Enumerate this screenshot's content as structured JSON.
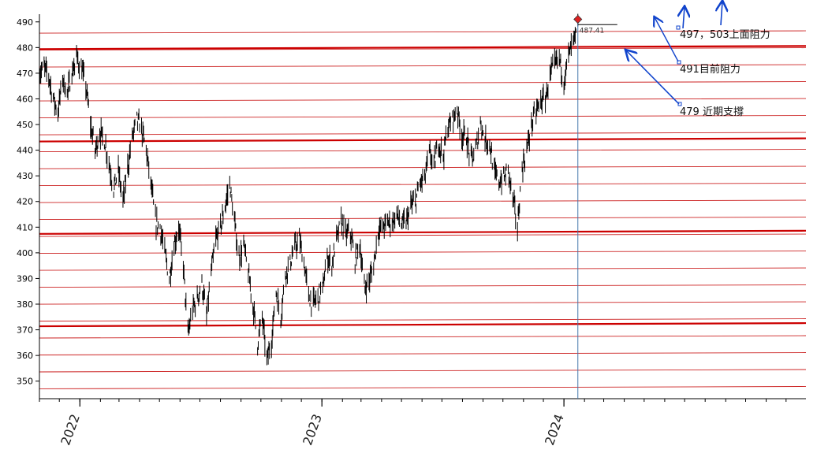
{
  "chart_data": {
    "type": "candlestick",
    "title": "",
    "xlabel": "",
    "ylabel": "",
    "ylim": [
      345,
      493
    ],
    "yticks": [
      350,
      360,
      370,
      380,
      390,
      400,
      410,
      420,
      430,
      440,
      450,
      460,
      470,
      480,
      490
    ],
    "xlim": [
      "2021-11-01",
      "2024-12-31"
    ],
    "xticks": [
      {
        "label": "2022",
        "date": "2022-01-01"
      },
      {
        "label": "2023",
        "date": "2023-01-01"
      },
      {
        "label": "2024",
        "date": "2024-01-01"
      }
    ],
    "grid": false,
    "colors": {
      "bars": "#000000",
      "thin_lines": "#cc2222",
      "thick_lines": "#cc0000",
      "annotation": "#1144cc",
      "marker": "#dd2222",
      "cursor_line": "#4477aa"
    },
    "price_points": [
      [
        "2021-11-01",
        470
      ],
      [
        "2021-11-08",
        472
      ],
      [
        "2021-11-15",
        469
      ],
      [
        "2021-11-22",
        460
      ],
      [
        "2021-11-29",
        455
      ],
      [
        "2021-12-06",
        468
      ],
      [
        "2021-12-13",
        462
      ],
      [
        "2021-12-20",
        470
      ],
      [
        "2021-12-27",
        476
      ],
      [
        "2022-01-03",
        472
      ],
      [
        "2022-01-10",
        465
      ],
      [
        "2022-01-17",
        450
      ],
      [
        "2022-01-24",
        440
      ],
      [
        "2022-01-31",
        447
      ],
      [
        "2022-02-07",
        444
      ],
      [
        "2022-02-14",
        435
      ],
      [
        "2022-02-21",
        425
      ],
      [
        "2022-02-28",
        432
      ],
      [
        "2022-03-07",
        420
      ],
      [
        "2022-03-14",
        433
      ],
      [
        "2022-03-21",
        445
      ],
      [
        "2022-03-28",
        452
      ],
      [
        "2022-04-04",
        448
      ],
      [
        "2022-04-11",
        440
      ],
      [
        "2022-04-18",
        427
      ],
      [
        "2022-04-25",
        412
      ],
      [
        "2022-05-02",
        410
      ],
      [
        "2022-05-09",
        400
      ],
      [
        "2022-05-16",
        390
      ],
      [
        "2022-05-23",
        403
      ],
      [
        "2022-05-30",
        410
      ],
      [
        "2022-06-06",
        395
      ],
      [
        "2022-06-13",
        368
      ],
      [
        "2022-06-20",
        378
      ],
      [
        "2022-06-27",
        382
      ],
      [
        "2022-07-04",
        388
      ],
      [
        "2022-07-11",
        375
      ],
      [
        "2022-07-18",
        392
      ],
      [
        "2022-07-25",
        405
      ],
      [
        "2022-08-01",
        410
      ],
      [
        "2022-08-08",
        418
      ],
      [
        "2022-08-15",
        427
      ],
      [
        "2022-08-22",
        412
      ],
      [
        "2022-08-29",
        398
      ],
      [
        "2022-09-05",
        403
      ],
      [
        "2022-09-12",
        392
      ],
      [
        "2022-09-19",
        380
      ],
      [
        "2022-09-26",
        365
      ],
      [
        "2022-10-03",
        375
      ],
      [
        "2022-10-10",
        358
      ],
      [
        "2022-10-17",
        366
      ],
      [
        "2022-10-24",
        385
      ],
      [
        "2022-10-31",
        375
      ],
      [
        "2022-11-07",
        392
      ],
      [
        "2022-11-14",
        396
      ],
      [
        "2022-11-21",
        402
      ],
      [
        "2022-11-28",
        405
      ],
      [
        "2022-12-05",
        396
      ],
      [
        "2022-12-12",
        383
      ],
      [
        "2022-12-19",
        380
      ],
      [
        "2022-12-26",
        383
      ],
      [
        "2023-01-02",
        386
      ],
      [
        "2023-01-09",
        398
      ],
      [
        "2023-01-16",
        396
      ],
      [
        "2023-01-23",
        405
      ],
      [
        "2023-01-30",
        412
      ],
      [
        "2023-02-06",
        407
      ],
      [
        "2023-02-13",
        408
      ],
      [
        "2023-02-20",
        397
      ],
      [
        "2023-02-27",
        404
      ],
      [
        "2023-03-06",
        386
      ],
      [
        "2023-03-13",
        389
      ],
      [
        "2023-03-20",
        395
      ],
      [
        "2023-03-27",
        409
      ],
      [
        "2023-04-03",
        410
      ],
      [
        "2023-04-10",
        412
      ],
      [
        "2023-04-17",
        412
      ],
      [
        "2023-04-24",
        415
      ],
      [
        "2023-05-01",
        411
      ],
      [
        "2023-05-08",
        412
      ],
      [
        "2023-05-15",
        418
      ],
      [
        "2023-05-22",
        420
      ],
      [
        "2023-05-29",
        427
      ],
      [
        "2023-06-05",
        429
      ],
      [
        "2023-06-12",
        439
      ],
      [
        "2023-06-19",
        434
      ],
      [
        "2023-06-26",
        443
      ],
      [
        "2023-07-03",
        438
      ],
      [
        "2023-07-10",
        449
      ],
      [
        "2023-07-17",
        452
      ],
      [
        "2023-07-24",
        456
      ],
      [
        "2023-07-31",
        446
      ],
      [
        "2023-08-07",
        445
      ],
      [
        "2023-08-14",
        436
      ],
      [
        "2023-08-21",
        440
      ],
      [
        "2023-08-28",
        451
      ],
      [
        "2023-09-04",
        444
      ],
      [
        "2023-09-11",
        443
      ],
      [
        "2023-09-18",
        431
      ],
      [
        "2023-09-25",
        428
      ],
      [
        "2023-10-02",
        429
      ],
      [
        "2023-10-09",
        432
      ],
      [
        "2023-10-16",
        421
      ],
      [
        "2023-10-23",
        410
      ],
      [
        "2023-10-30",
        433
      ],
      [
        "2023-11-06",
        440
      ],
      [
        "2023-11-13",
        450
      ],
      [
        "2023-11-20",
        455
      ],
      [
        "2023-11-27",
        459
      ],
      [
        "2023-12-04",
        460
      ],
      [
        "2023-12-11",
        469
      ],
      [
        "2023-12-18",
        473
      ],
      [
        "2023-12-25",
        476
      ],
      [
        "2024-01-01",
        467
      ],
      [
        "2024-01-08",
        477
      ],
      [
        "2024-01-15",
        482
      ],
      [
        "2024-01-22",
        487
      ]
    ],
    "last_price_label": "487.41",
    "annotations": [
      {
        "text": "497，503上面阻力",
        "price": 497
      },
      {
        "text": "491目前阻力",
        "price": 491
      },
      {
        "text": "479 近期支撐",
        "price": 479
      }
    ]
  }
}
